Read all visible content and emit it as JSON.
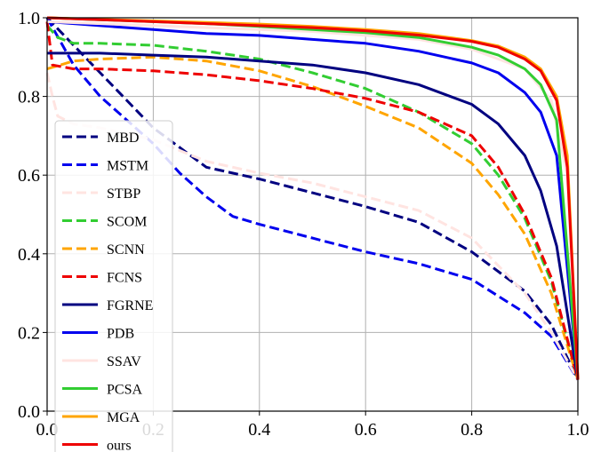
{
  "chart_data": {
    "type": "line",
    "title": "",
    "xlabel": "",
    "ylabel": "",
    "xlim": [
      0.0,
      1.0
    ],
    "ylim": [
      0.0,
      1.0
    ],
    "grid": true,
    "legend_position": "left",
    "x_ticks": [
      "0.0",
      "0.2",
      "0.4",
      "0.6",
      "0.8",
      "1.0"
    ],
    "y_ticks": [
      "0.0",
      "0.2",
      "0.4",
      "0.6",
      "0.8",
      "1.0"
    ],
    "series": [
      {
        "name": "MBD",
        "color": "#000080",
        "style": "dashed",
        "points": [
          [
            0.0,
            1.0
          ],
          [
            0.05,
            0.93
          ],
          [
            0.1,
            0.86
          ],
          [
            0.15,
            0.79
          ],
          [
            0.2,
            0.72
          ],
          [
            0.25,
            0.67
          ],
          [
            0.3,
            0.62
          ],
          [
            0.4,
            0.59
          ],
          [
            0.5,
            0.555
          ],
          [
            0.6,
            0.52
          ],
          [
            0.7,
            0.48
          ],
          [
            0.8,
            0.405
          ],
          [
            0.9,
            0.305
          ],
          [
            0.95,
            0.22
          ],
          [
            1.0,
            0.08
          ]
        ]
      },
      {
        "name": "MSTM",
        "color": "#0000ee",
        "style": "dashed",
        "points": [
          [
            0.0,
            1.0
          ],
          [
            0.05,
            0.88
          ],
          [
            0.1,
            0.8
          ],
          [
            0.15,
            0.74
          ],
          [
            0.2,
            0.68
          ],
          [
            0.25,
            0.605
          ],
          [
            0.3,
            0.545
          ],
          [
            0.35,
            0.495
          ],
          [
            0.4,
            0.475
          ],
          [
            0.5,
            0.44
          ],
          [
            0.6,
            0.405
          ],
          [
            0.7,
            0.375
          ],
          [
            0.8,
            0.335
          ],
          [
            0.9,
            0.25
          ],
          [
            0.95,
            0.19
          ],
          [
            1.0,
            0.08
          ]
        ]
      },
      {
        "name": "STBP",
        "color": "#ffe4e1",
        "style": "dashed",
        "points": [
          [
            0.0,
            0.86
          ],
          [
            0.01,
            0.8
          ],
          [
            0.02,
            0.75
          ],
          [
            0.05,
            0.73
          ],
          [
            0.1,
            0.72
          ],
          [
            0.2,
            0.69
          ],
          [
            0.3,
            0.635
          ],
          [
            0.4,
            0.605
          ],
          [
            0.5,
            0.58
          ],
          [
            0.6,
            0.545
          ],
          [
            0.7,
            0.51
          ],
          [
            0.8,
            0.44
          ],
          [
            0.9,
            0.3
          ],
          [
            0.95,
            0.2
          ],
          [
            1.0,
            0.08
          ]
        ]
      },
      {
        "name": "SCOM",
        "color": "#32cd32",
        "style": "dashed",
        "points": [
          [
            0.0,
            0.98
          ],
          [
            0.02,
            0.95
          ],
          [
            0.05,
            0.935
          ],
          [
            0.1,
            0.935
          ],
          [
            0.2,
            0.93
          ],
          [
            0.3,
            0.915
          ],
          [
            0.4,
            0.895
          ],
          [
            0.5,
            0.86
          ],
          [
            0.6,
            0.82
          ],
          [
            0.7,
            0.76
          ],
          [
            0.8,
            0.68
          ],
          [
            0.85,
            0.6
          ],
          [
            0.9,
            0.49
          ],
          [
            0.95,
            0.33
          ],
          [
            1.0,
            0.08
          ]
        ]
      },
      {
        "name": "SCNN",
        "color": "#ffa500",
        "style": "dashed",
        "points": [
          [
            0.0,
            0.87
          ],
          [
            0.05,
            0.89
          ],
          [
            0.1,
            0.895
          ],
          [
            0.2,
            0.9
          ],
          [
            0.3,
            0.89
          ],
          [
            0.4,
            0.865
          ],
          [
            0.5,
            0.825
          ],
          [
            0.6,
            0.775
          ],
          [
            0.7,
            0.72
          ],
          [
            0.8,
            0.63
          ],
          [
            0.85,
            0.55
          ],
          [
            0.9,
            0.45
          ],
          [
            0.95,
            0.3
          ],
          [
            1.0,
            0.08
          ]
        ]
      },
      {
        "name": "FCNS",
        "color": "#ee0000",
        "style": "dashed",
        "points": [
          [
            0.0,
            0.99
          ],
          [
            0.01,
            0.88
          ],
          [
            0.05,
            0.87
          ],
          [
            0.1,
            0.87
          ],
          [
            0.2,
            0.865
          ],
          [
            0.3,
            0.855
          ],
          [
            0.4,
            0.84
          ],
          [
            0.5,
            0.82
          ],
          [
            0.6,
            0.795
          ],
          [
            0.7,
            0.76
          ],
          [
            0.8,
            0.7
          ],
          [
            0.85,
            0.62
          ],
          [
            0.9,
            0.5
          ],
          [
            0.95,
            0.34
          ],
          [
            1.0,
            0.08
          ]
        ]
      },
      {
        "name": "FGRNE",
        "color": "#000080",
        "style": "solid",
        "points": [
          [
            0.0,
            0.91
          ],
          [
            0.1,
            0.91
          ],
          [
            0.2,
            0.905
          ],
          [
            0.3,
            0.9
          ],
          [
            0.4,
            0.89
          ],
          [
            0.5,
            0.88
          ],
          [
            0.6,
            0.86
          ],
          [
            0.7,
            0.83
          ],
          [
            0.8,
            0.78
          ],
          [
            0.85,
            0.73
          ],
          [
            0.9,
            0.65
          ],
          [
            0.93,
            0.56
          ],
          [
            0.96,
            0.42
          ],
          [
            1.0,
            0.08
          ]
        ]
      },
      {
        "name": "PDB",
        "color": "#0000ee",
        "style": "solid",
        "points": [
          [
            0.0,
            0.99
          ],
          [
            0.1,
            0.98
          ],
          [
            0.2,
            0.97
          ],
          [
            0.3,
            0.96
          ],
          [
            0.4,
            0.955
          ],
          [
            0.5,
            0.945
          ],
          [
            0.6,
            0.935
          ],
          [
            0.7,
            0.915
          ],
          [
            0.8,
            0.885
          ],
          [
            0.85,
            0.86
          ],
          [
            0.9,
            0.81
          ],
          [
            0.93,
            0.76
          ],
          [
            0.96,
            0.65
          ],
          [
            1.0,
            0.08
          ]
        ]
      },
      {
        "name": "SSAV",
        "color": "#ffe4e1",
        "style": "solid",
        "points": [
          [
            0.0,
            0.99
          ],
          [
            0.1,
            0.985
          ],
          [
            0.2,
            0.98
          ],
          [
            0.3,
            0.975
          ],
          [
            0.4,
            0.97
          ],
          [
            0.5,
            0.965
          ],
          [
            0.6,
            0.955
          ],
          [
            0.7,
            0.945
          ],
          [
            0.8,
            0.92
          ],
          [
            0.9,
            0.87
          ],
          [
            0.95,
            0.79
          ],
          [
            0.98,
            0.6
          ],
          [
            1.0,
            0.08
          ]
        ]
      },
      {
        "name": "PCSA",
        "color": "#32cd32",
        "style": "solid",
        "points": [
          [
            0.0,
            1.0
          ],
          [
            0.1,
            0.995
          ],
          [
            0.2,
            0.99
          ],
          [
            0.3,
            0.985
          ],
          [
            0.4,
            0.978
          ],
          [
            0.5,
            0.97
          ],
          [
            0.6,
            0.962
          ],
          [
            0.7,
            0.95
          ],
          [
            0.8,
            0.925
          ],
          [
            0.85,
            0.905
          ],
          [
            0.9,
            0.87
          ],
          [
            0.93,
            0.83
          ],
          [
            0.96,
            0.74
          ],
          [
            1.0,
            0.08
          ]
        ]
      },
      {
        "name": "MGA",
        "color": "#ffa500",
        "style": "solid",
        "points": [
          [
            0.0,
            1.0
          ],
          [
            0.1,
            0.996
          ],
          [
            0.2,
            0.992
          ],
          [
            0.3,
            0.988
          ],
          [
            0.4,
            0.984
          ],
          [
            0.5,
            0.978
          ],
          [
            0.6,
            0.97
          ],
          [
            0.7,
            0.96
          ],
          [
            0.8,
            0.942
          ],
          [
            0.85,
            0.928
          ],
          [
            0.9,
            0.9
          ],
          [
            0.93,
            0.87
          ],
          [
            0.96,
            0.8
          ],
          [
            0.98,
            0.65
          ],
          [
            1.0,
            0.08
          ]
        ]
      },
      {
        "name": "ours",
        "color": "#ee0000",
        "style": "solid",
        "points": [
          [
            0.0,
            1.0
          ],
          [
            0.1,
            0.995
          ],
          [
            0.2,
            0.99
          ],
          [
            0.3,
            0.985
          ],
          [
            0.4,
            0.98
          ],
          [
            0.5,
            0.975
          ],
          [
            0.6,
            0.967
          ],
          [
            0.7,
            0.956
          ],
          [
            0.8,
            0.94
          ],
          [
            0.85,
            0.925
          ],
          [
            0.9,
            0.895
          ],
          [
            0.93,
            0.865
          ],
          [
            0.96,
            0.79
          ],
          [
            0.98,
            0.62
          ],
          [
            1.0,
            0.08
          ]
        ]
      }
    ]
  }
}
